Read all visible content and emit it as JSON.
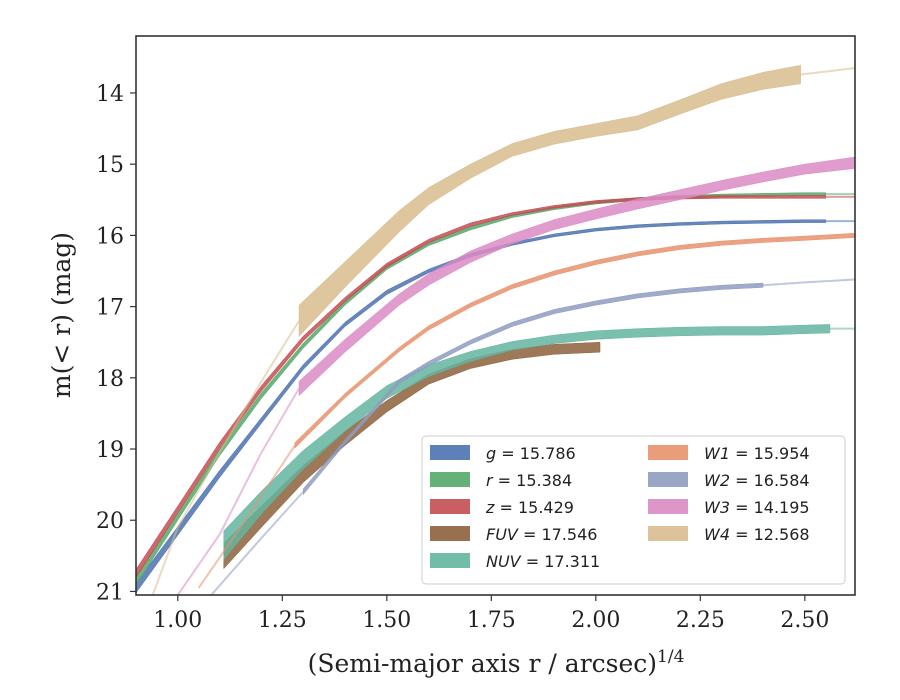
{
  "chart_data": {
    "type": "line",
    "xlabel": "(Semi-major axis r / arcsec)",
    "xlabel_exponent": "1/4",
    "ylabel": "m(< r) (mag)",
    "xlim": [
      0.9,
      2.62
    ],
    "ylim": [
      21.05,
      13.2
    ],
    "y_inverted": true,
    "x_ticks": [
      "1.00",
      "1.25",
      "1.50",
      "1.75",
      "2.00",
      "2.25",
      "2.50"
    ],
    "x_tick_values": [
      1.0,
      1.25,
      1.5,
      1.75,
      2.0,
      2.25,
      2.5
    ],
    "y_ticks": [
      "14",
      "15",
      "16",
      "17",
      "18",
      "19",
      "20",
      "21"
    ],
    "y_tick_values": [
      14,
      15,
      16,
      17,
      18,
      19,
      20,
      21
    ],
    "grid": false,
    "legend_position": "bottom-right",
    "series": [
      {
        "name": "g = 15.786",
        "band": "g",
        "mag": "15.786",
        "color": "#4C72B0",
        "x": [
          0.9,
          1.0,
          1.1,
          1.2,
          1.3,
          1.4,
          1.5,
          1.6,
          1.7,
          1.8,
          1.9,
          2.0,
          2.1,
          2.2,
          2.3,
          2.4,
          2.5,
          2.55
        ],
        "y": [
          20.95,
          20.15,
          19.35,
          18.6,
          17.85,
          17.25,
          16.8,
          16.5,
          16.28,
          16.12,
          16.0,
          15.92,
          15.87,
          15.84,
          15.82,
          15.81,
          15.8,
          15.8
        ],
        "err_low": [
          0.07,
          0.06,
          0.05,
          0.04,
          0.035,
          0.03,
          0.03,
          0.025,
          0.025,
          0.02,
          0.02,
          0.02,
          0.02,
          0.02,
          0.02,
          0.02,
          0.02,
          0.02
        ],
        "err_high": [
          0.07,
          0.06,
          0.05,
          0.04,
          0.035,
          0.03,
          0.03,
          0.025,
          0.025,
          0.02,
          0.02,
          0.02,
          0.02,
          0.02,
          0.02,
          0.02,
          0.02,
          0.02
        ],
        "model_x": [
          2.55,
          2.62
        ],
        "model_y": [
          15.8,
          15.8
        ]
      },
      {
        "name": "r = 15.384",
        "band": "r",
        "mag": "15.384",
        "color": "#55A868",
        "x": [
          0.9,
          1.0,
          1.1,
          1.2,
          1.3,
          1.4,
          1.5,
          1.6,
          1.7,
          1.8,
          1.9,
          2.0,
          2.1,
          2.2,
          2.3,
          2.4,
          2.5,
          2.55
        ],
        "y": [
          20.85,
          19.95,
          19.05,
          18.25,
          17.55,
          16.95,
          16.45,
          16.12,
          15.9,
          15.73,
          15.62,
          15.54,
          15.49,
          15.46,
          15.44,
          15.43,
          15.42,
          15.42
        ],
        "err_low": [
          0.06,
          0.05,
          0.045,
          0.04,
          0.035,
          0.03,
          0.03,
          0.025,
          0.025,
          0.02,
          0.02,
          0.02,
          0.02,
          0.02,
          0.02,
          0.02,
          0.02,
          0.02
        ],
        "err_high": [
          0.06,
          0.05,
          0.045,
          0.04,
          0.035,
          0.03,
          0.03,
          0.025,
          0.025,
          0.02,
          0.02,
          0.02,
          0.02,
          0.02,
          0.02,
          0.02,
          0.02,
          0.02
        ],
        "model_x": [
          2.55,
          2.62
        ],
        "model_y": [
          15.42,
          15.42
        ]
      },
      {
        "name": "z = 15.429",
        "band": "z",
        "mag": "15.429",
        "color": "#C44E52",
        "x": [
          0.9,
          1.0,
          1.1,
          1.2,
          1.3,
          1.4,
          1.5,
          1.6,
          1.7,
          1.8,
          1.9,
          2.0,
          2.1,
          2.2,
          2.3,
          2.4,
          2.5,
          2.55
        ],
        "y": [
          20.75,
          19.85,
          18.95,
          18.15,
          17.45,
          16.9,
          16.42,
          16.08,
          15.85,
          15.7,
          15.6,
          15.53,
          15.49,
          15.47,
          15.46,
          15.46,
          15.46,
          15.46
        ],
        "err_low": [
          0.06,
          0.05,
          0.045,
          0.04,
          0.035,
          0.03,
          0.03,
          0.025,
          0.025,
          0.02,
          0.02,
          0.02,
          0.02,
          0.02,
          0.02,
          0.02,
          0.02,
          0.02
        ],
        "err_high": [
          0.06,
          0.05,
          0.045,
          0.04,
          0.035,
          0.03,
          0.03,
          0.025,
          0.025,
          0.02,
          0.02,
          0.02,
          0.02,
          0.02,
          0.02,
          0.02,
          0.02,
          0.02
        ],
        "model_x": [
          2.55,
          2.62
        ],
        "model_y": [
          15.46,
          15.46
        ]
      },
      {
        "name": "FUV = 17.546",
        "band": "FUV",
        "mag": "17.546",
        "color": "#8C613C",
        "x": [
          1.11,
          1.2,
          1.3,
          1.4,
          1.5,
          1.6,
          1.7,
          1.8,
          1.9,
          2.01
        ],
        "y": [
          20.5,
          19.95,
          19.35,
          18.85,
          18.4,
          18.02,
          17.8,
          17.67,
          17.6,
          17.57
        ],
        "err_low": [
          0.18,
          0.15,
          0.12,
          0.1,
          0.08,
          0.07,
          0.07,
          0.07,
          0.07,
          0.07
        ],
        "err_high": [
          0.18,
          0.15,
          0.12,
          0.1,
          0.08,
          0.07,
          0.07,
          0.07,
          0.07,
          0.07
        ],
        "model_x": [
          2.01,
          2.62
        ],
        "model_y": [
          17.56,
          17.55
        ]
      },
      {
        "name": "NUV = 17.311",
        "band": "NUV",
        "mag": "17.311",
        "color": "#64B5A0",
        "x": [
          1.11,
          1.2,
          1.3,
          1.4,
          1.5,
          1.6,
          1.7,
          1.8,
          1.9,
          2.0,
          2.1,
          2.2,
          2.3,
          2.4,
          2.5,
          2.56
        ],
        "y": [
          20.35,
          19.75,
          19.15,
          18.65,
          18.2,
          17.9,
          17.7,
          17.55,
          17.46,
          17.4,
          17.37,
          17.35,
          17.34,
          17.34,
          17.32,
          17.31
        ],
        "err_low": [
          0.2,
          0.16,
          0.13,
          0.1,
          0.09,
          0.08,
          0.07,
          0.06,
          0.06,
          0.06,
          0.06,
          0.06,
          0.06,
          0.06,
          0.06,
          0.06
        ],
        "err_high": [
          0.2,
          0.16,
          0.13,
          0.1,
          0.09,
          0.08,
          0.07,
          0.06,
          0.06,
          0.06,
          0.06,
          0.06,
          0.06,
          0.06,
          0.06,
          0.06
        ],
        "model_x": [
          2.56,
          2.62
        ],
        "model_y": [
          17.31,
          17.31
        ]
      },
      {
        "name": "W1 = 15.954",
        "band": "W1",
        "mag": "15.954",
        "color": "#E8926C",
        "x": [
          1.28,
          1.4,
          1.53,
          1.6,
          1.7,
          1.8,
          1.9,
          2.0,
          2.1,
          2.2,
          2.3,
          2.4,
          2.5,
          2.62
        ],
        "y": [
          18.95,
          18.25,
          17.6,
          17.3,
          16.98,
          16.72,
          16.53,
          16.38,
          16.26,
          16.17,
          16.11,
          16.07,
          16.04,
          16.0
        ],
        "err_low": [
          0.04,
          0.03,
          0.03,
          0.03,
          0.03,
          0.03,
          0.03,
          0.03,
          0.03,
          0.03,
          0.03,
          0.03,
          0.03,
          0.03
        ],
        "err_high": [
          0.04,
          0.03,
          0.03,
          0.03,
          0.03,
          0.03,
          0.03,
          0.03,
          0.03,
          0.03,
          0.03,
          0.03,
          0.03,
          0.03
        ],
        "model_x": [
          1.05,
          1.15,
          1.28
        ],
        "model_y": [
          20.95,
          20.1,
          18.95
        ]
      },
      {
        "name": "W2 = 16.584",
        "band": "W2",
        "mag": "16.584",
        "color": "#8E9CC0",
        "x": [
          1.3,
          1.4,
          1.53,
          1.6,
          1.7,
          1.8,
          1.9,
          2.0,
          2.1,
          2.2,
          2.3,
          2.4
        ],
        "y": [
          19.6,
          18.9,
          18.05,
          17.8,
          17.5,
          17.25,
          17.07,
          16.95,
          16.85,
          16.78,
          16.73,
          16.7
        ],
        "err_low": [
          0.04,
          0.03,
          0.03,
          0.03,
          0.03,
          0.03,
          0.03,
          0.03,
          0.03,
          0.03,
          0.03,
          0.03
        ],
        "err_high": [
          0.04,
          0.03,
          0.03,
          0.03,
          0.03,
          0.03,
          0.03,
          0.03,
          0.03,
          0.03,
          0.03,
          0.03
        ],
        "model_x": [
          1.08,
          1.2,
          1.3,
          2.4,
          2.5,
          2.62
        ],
        "model_y": [
          21.05,
          20.25,
          19.6,
          16.7,
          16.66,
          16.62
        ]
      },
      {
        "name": "W3 = 14.195",
        "band": "W3",
        "mag": "14.195",
        "color": "#DA8BC3",
        "x": [
          1.29,
          1.4,
          1.53,
          1.6,
          1.7,
          1.8,
          1.9,
          2.0,
          2.1,
          2.2,
          2.3,
          2.4,
          2.5,
          2.62
        ],
        "y": [
          18.15,
          17.55,
          16.9,
          16.62,
          16.3,
          16.05,
          15.85,
          15.7,
          15.56,
          15.43,
          15.3,
          15.18,
          15.07,
          14.98
        ],
        "err_low": [
          0.1,
          0.09,
          0.08,
          0.08,
          0.08,
          0.07,
          0.07,
          0.07,
          0.07,
          0.07,
          0.07,
          0.07,
          0.07,
          0.08
        ],
        "err_high": [
          0.1,
          0.09,
          0.08,
          0.08,
          0.08,
          0.07,
          0.07,
          0.07,
          0.07,
          0.07,
          0.07,
          0.07,
          0.07,
          0.08
        ],
        "model_x": [
          1.0,
          1.1,
          1.2,
          1.29
        ],
        "model_y": [
          21.05,
          20.2,
          19.05,
          18.15
        ]
      },
      {
        "name": "W4 = 12.568",
        "band": "W4",
        "mag": "12.568",
        "color": "#D8BC8E",
        "x": [
          1.29,
          1.4,
          1.53,
          1.6,
          1.7,
          1.8,
          1.9,
          2.0,
          2.1,
          2.2,
          2.3,
          2.4,
          2.49
        ],
        "y": [
          17.2,
          16.55,
          15.8,
          15.45,
          15.1,
          14.8,
          14.63,
          14.52,
          14.42,
          14.2,
          13.98,
          13.83,
          13.74
        ],
        "err_low": [
          0.22,
          0.18,
          0.15,
          0.12,
          0.1,
          0.09,
          0.09,
          0.09,
          0.1,
          0.1,
          0.11,
          0.12,
          0.13
        ],
        "err_high": [
          0.22,
          0.18,
          0.15,
          0.12,
          0.1,
          0.09,
          0.09,
          0.09,
          0.1,
          0.1,
          0.11,
          0.12,
          0.13
        ],
        "model_x": [
          0.94,
          1.0,
          1.1,
          1.2,
          1.29,
          2.49,
          2.55,
          2.62
        ],
        "model_y": [
          21.05,
          20.1,
          19.05,
          18.05,
          17.2,
          13.74,
          13.7,
          13.65
        ]
      }
    ]
  }
}
